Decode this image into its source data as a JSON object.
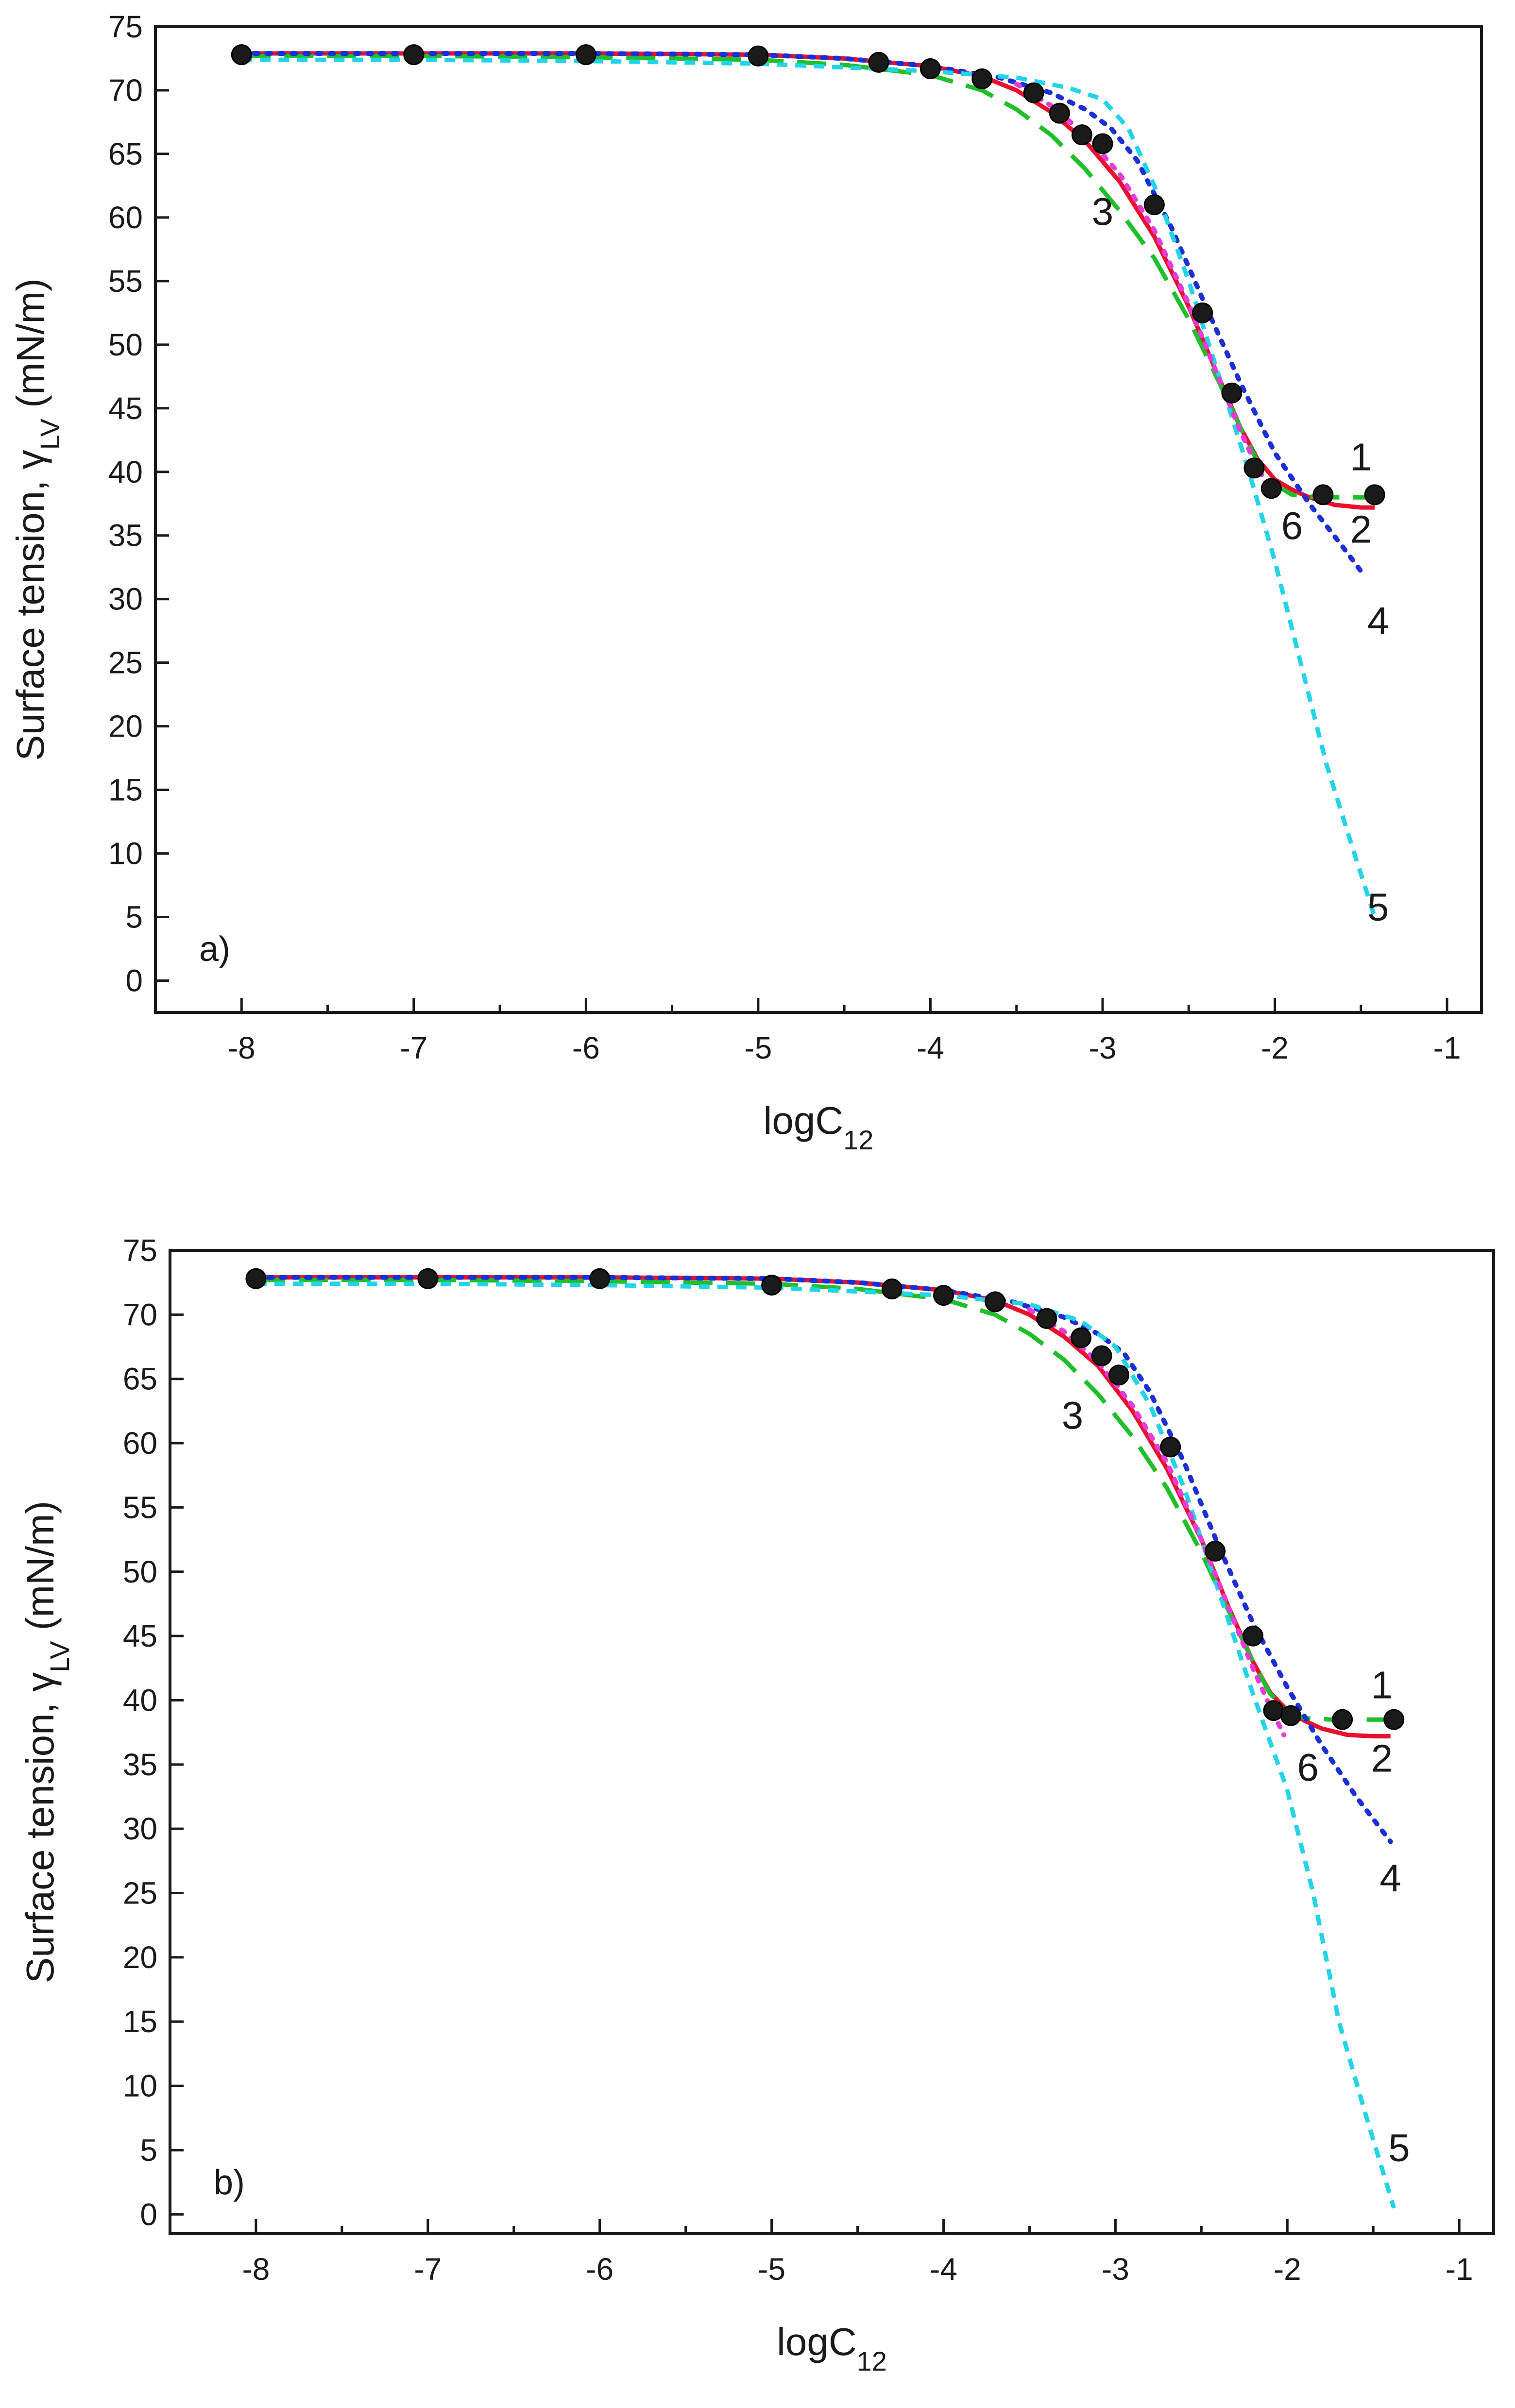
{
  "chart_data": [
    {
      "type": "line",
      "panel_label": "a)",
      "xlabel": "logC",
      "xlabel_sub": "12",
      "ylabel_text": "Surface tension, γ",
      "ylabel_sub": "LV",
      "ylabel_units": " (mN/m)",
      "xlim": [
        -8.5,
        -0.8
      ],
      "ylim": [
        -2.5,
        75
      ],
      "x_ticks": [
        -8,
        -7,
        -6,
        -5,
        -4,
        -3,
        -2,
        -1
      ],
      "x_tick_labels": [
        "-8",
        "-7",
        "-6",
        "-5",
        "-4",
        "-3",
        "-2",
        "-1"
      ],
      "y_ticks": [
        0,
        5,
        10,
        15,
        20,
        25,
        30,
        35,
        40,
        45,
        50,
        55,
        60,
        65,
        70,
        75
      ],
      "y_tick_labels": [
        "0",
        "5",
        "10",
        "15",
        "20",
        "25",
        "30",
        "35",
        "40",
        "45",
        "50",
        "55",
        "60",
        "65",
        "70",
        "75"
      ],
      "series": [
        {
          "name": "1",
          "style": "points",
          "color": "#1a1a1a",
          "x": [
            -8,
            -7,
            -6,
            -5,
            -4.3,
            -4.0,
            -3.7,
            -3.4,
            -3.25,
            -3.12,
            -3.0,
            -2.7,
            -2.42,
            -2.25,
            -2.12,
            -2.02,
            -1.72,
            -1.42
          ],
          "y": [
            72.8,
            72.8,
            72.8,
            72.7,
            72.2,
            71.7,
            70.9,
            69.8,
            68.2,
            66.5,
            65.8,
            61.0,
            52.5,
            46.2,
            40.3,
            38.7,
            38.2,
            38.2
          ]
        },
        {
          "name": "2",
          "style": "solid",
          "color": "#e8102e",
          "x": [
            -8,
            -7,
            -6,
            -5,
            -4.5,
            -4.0,
            -3.7,
            -3.5,
            -3.3,
            -3.1,
            -2.9,
            -2.7,
            -2.5,
            -2.35,
            -2.2,
            -2.1,
            -2.0,
            -1.9,
            -1.8,
            -1.65,
            -1.5,
            -1.42
          ],
          "y": [
            72.9,
            72.9,
            72.9,
            72.8,
            72.5,
            71.9,
            71.1,
            70.0,
            68.3,
            66.0,
            62.8,
            58.5,
            53.0,
            48.2,
            43.5,
            41.0,
            39.4,
            38.6,
            38.0,
            37.4,
            37.2,
            37.2
          ]
        },
        {
          "name": "3",
          "style": "dashed",
          "color": "#1fbf2a",
          "x": [
            -8,
            -7,
            -6,
            -5,
            -4.5,
            -4.0,
            -3.7,
            -3.5,
            -3.3,
            -3.1,
            -2.9,
            -2.7,
            -2.5,
            -2.35,
            -2.2,
            -2.1,
            -2.0,
            -1.9,
            -1.75,
            -1.6,
            -1.42
          ],
          "y": [
            72.7,
            72.7,
            72.6,
            72.4,
            72.0,
            71.2,
            70.0,
            68.5,
            66.5,
            63.8,
            60.5,
            56.8,
            52.0,
            47.8,
            43.5,
            40.8,
            39.0,
            38.2,
            38.0,
            38.0,
            38.0
          ]
        },
        {
          "name": "4",
          "style": "dotted",
          "color": "#1c2fd6",
          "x": [
            -8,
            -7,
            -6,
            -5,
            -4.5,
            -4.0,
            -3.6,
            -3.3,
            -3.1,
            -2.95,
            -2.8,
            -2.6,
            -2.4,
            -2.2,
            -2.0,
            -1.8,
            -1.6,
            -1.5
          ],
          "y": [
            72.9,
            72.9,
            72.9,
            72.8,
            72.5,
            71.9,
            71.0,
            69.8,
            68.5,
            67.0,
            64.5,
            59.2,
            53.0,
            47.0,
            41.5,
            37.5,
            34.0,
            32.2
          ]
        },
        {
          "name": "5",
          "style": "short-dash",
          "color": "#22d4e8",
          "x": [
            -8,
            -7,
            -6,
            -5,
            -4.5,
            -4.0,
            -3.5,
            -3.2,
            -3.0,
            -2.85,
            -2.7,
            -2.5,
            -2.3,
            -2.15,
            -2.0,
            -1.85,
            -1.7,
            -1.55,
            -1.42
          ],
          "y": [
            72.4,
            72.4,
            72.3,
            72.1,
            71.8,
            71.5,
            71.0,
            70.2,
            69.3,
            67.0,
            62.5,
            55.0,
            46.5,
            40.0,
            33.0,
            25.0,
            17.0,
            10.5,
            5.0
          ]
        },
        {
          "name": "6",
          "style": "dotted",
          "color": "#e83ad8",
          "x": [
            -3.5,
            -3.3,
            -3.1,
            -2.9,
            -2.7,
            -2.5,
            -2.35,
            -2.2,
            -2.1,
            -2.0
          ],
          "y": [
            70.5,
            68.8,
            66.5,
            63.4,
            59.0,
            53.2,
            48.2,
            43.2,
            40.3,
            38.2
          ]
        }
      ],
      "annotations": [
        {
          "text": "1",
          "x": -1.5,
          "y": 41.2
        },
        {
          "text": "2",
          "x": -1.5,
          "y": 35.5
        },
        {
          "text": "3",
          "x": -3.0,
          "y": 60.5
        },
        {
          "text": "4",
          "x": -1.4,
          "y": 28.3
        },
        {
          "text": "5",
          "x": -1.4,
          "y": 5.8
        },
        {
          "text": "6",
          "x": -1.9,
          "y": 35.8
        }
      ]
    },
    {
      "type": "line",
      "panel_label": "b)",
      "xlabel": "logC",
      "xlabel_sub": "12",
      "ylabel_text": "Surface tension, γ",
      "ylabel_sub": "LV",
      "ylabel_units": " (mN/m)",
      "xlim": [
        -8.5,
        -0.8
      ],
      "ylim": [
        -1.5,
        75
      ],
      "x_ticks": [
        -8,
        -7,
        -6,
        -5,
        -4,
        -3,
        -2,
        -1
      ],
      "x_tick_labels": [
        "-8",
        "-7",
        "-6",
        "-5",
        "-4",
        "-3",
        "-2",
        "-1"
      ],
      "y_ticks": [
        0,
        5,
        10,
        15,
        20,
        25,
        30,
        35,
        40,
        45,
        50,
        55,
        60,
        65,
        70,
        75
      ],
      "y_tick_labels": [
        "0",
        "5",
        "10",
        "15",
        "20",
        "25",
        "30",
        "35",
        "40",
        "45",
        "50",
        "55",
        "60",
        "65",
        "70",
        "75"
      ],
      "series": [
        {
          "name": "1",
          "style": "points",
          "color": "#1a1a1a",
          "x": [
            -8,
            -7,
            -6,
            -5,
            -4.3,
            -4.0,
            -3.7,
            -3.4,
            -3.2,
            -3.08,
            -2.98,
            -2.68,
            -2.42,
            -2.2,
            -2.08,
            -1.98,
            -1.68,
            -1.38
          ],
          "y": [
            72.8,
            72.8,
            72.8,
            72.3,
            72.0,
            71.5,
            71.0,
            69.7,
            68.2,
            66.8,
            65.3,
            59.7,
            51.6,
            45.0,
            39.2,
            38.8,
            38.5,
            38.5
          ]
        },
        {
          "name": "2",
          "style": "solid",
          "color": "#e8102e",
          "x": [
            -8,
            -7,
            -6,
            -5,
            -4.5,
            -4.0,
            -3.7,
            -3.5,
            -3.3,
            -3.1,
            -2.9,
            -2.7,
            -2.5,
            -2.35,
            -2.2,
            -2.1,
            -2.0,
            -1.9,
            -1.8,
            -1.65,
            -1.5,
            -1.4
          ],
          "y": [
            72.9,
            72.9,
            72.9,
            72.8,
            72.5,
            71.9,
            71.1,
            70.0,
            68.3,
            66.0,
            62.5,
            58.0,
            52.5,
            47.5,
            43.0,
            40.6,
            39.2,
            38.4,
            37.8,
            37.3,
            37.2,
            37.2
          ]
        },
        {
          "name": "3",
          "style": "dashed",
          "color": "#1fbf2a",
          "x": [
            -8,
            -7,
            -6,
            -5,
            -4.5,
            -4.0,
            -3.7,
            -3.5,
            -3.3,
            -3.1,
            -2.9,
            -2.7,
            -2.5,
            -2.35,
            -2.2,
            -2.1,
            -2.0,
            -1.9,
            -1.75,
            -1.6,
            -1.4
          ],
          "y": [
            72.7,
            72.7,
            72.6,
            72.4,
            72.0,
            71.2,
            70.0,
            68.5,
            66.5,
            63.8,
            60.5,
            56.5,
            51.5,
            47.2,
            43.0,
            40.5,
            39.2,
            38.6,
            38.5,
            38.5,
            38.5
          ]
        },
        {
          "name": "4",
          "style": "dotted",
          "color": "#1c2fd6",
          "x": [
            -8,
            -7,
            -6,
            -5,
            -4.5,
            -4.0,
            -3.6,
            -3.3,
            -3.1,
            -2.95,
            -2.8,
            -2.6,
            -2.4,
            -2.2,
            -2.0,
            -1.8,
            -1.6,
            -1.4
          ],
          "y": [
            72.9,
            72.9,
            72.9,
            72.8,
            72.5,
            71.9,
            71.0,
            69.8,
            68.5,
            67.0,
            64.0,
            58.5,
            52.0,
            46.0,
            41.0,
            36.5,
            32.5,
            29.0
          ]
        },
        {
          "name": "5",
          "style": "short-dash",
          "color": "#22d4e8",
          "x": [
            -8,
            -7,
            -6,
            -5,
            -4.5,
            -4.0,
            -3.5,
            -3.2,
            -3.0,
            -2.8,
            -2.6,
            -2.4,
            -2.2,
            -2.0,
            -1.85,
            -1.7,
            -1.55,
            -1.38
          ],
          "y": [
            72.4,
            72.4,
            72.3,
            72.1,
            71.8,
            71.5,
            70.8,
            69.5,
            67.5,
            63.0,
            56.5,
            48.5,
            40.5,
            33.0,
            25.0,
            15.0,
            8.0,
            0.5
          ]
        },
        {
          "name": "6",
          "style": "dotted",
          "color": "#e83ad8",
          "x": [
            -3.5,
            -3.3,
            -3.1,
            -2.9,
            -2.7,
            -2.5,
            -2.35,
            -2.2,
            -2.1,
            -2.02
          ],
          "y": [
            70.4,
            68.7,
            66.3,
            62.9,
            58.5,
            52.5,
            47.5,
            42.5,
            39.5,
            37.3
          ]
        }
      ],
      "annotations": [
        {
          "text": "1",
          "x": -1.45,
          "y": 41.2
        },
        {
          "text": "2",
          "x": -1.45,
          "y": 35.5
        },
        {
          "text": "3",
          "x": -3.25,
          "y": 62.2
        },
        {
          "text": "4",
          "x": -1.4,
          "y": 26.2
        },
        {
          "text": "5",
          "x": -1.35,
          "y": 5.2
        },
        {
          "text": "6",
          "x": -1.88,
          "y": 34.8
        }
      ]
    }
  ]
}
